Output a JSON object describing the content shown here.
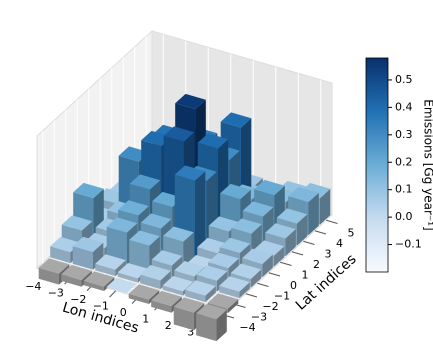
{
  "chart_data": {
    "type": "bar3d",
    "xlabel": "Lon indices",
    "ylabel": "Lat indices",
    "x": [
      -4,
      -3,
      -2,
      -1,
      0,
      1,
      2,
      3
    ],
    "y": [
      -4,
      -3,
      -2,
      -1,
      0,
      1,
      2,
      3,
      4,
      5
    ],
    "xticks": [
      {
        "value": -4,
        "label": "−4"
      },
      {
        "value": -3,
        "label": "−3"
      },
      {
        "value": -2,
        "label": "−2"
      },
      {
        "value": -1,
        "label": "−1"
      },
      0,
      1,
      2,
      3
    ],
    "yticks": [
      {
        "value": -4,
        "label": "−4"
      },
      {
        "value": -3,
        "label": "−3"
      },
      {
        "value": -2,
        "label": "−2"
      },
      {
        "value": -1,
        "label": "−1"
      },
      0,
      1,
      2,
      3,
      4,
      5
    ],
    "zlim": [
      0,
      0.6
    ],
    "values": [
      [
        -0.05,
        -0.03,
        -0.02,
        0.0,
        -0.02,
        -0.03,
        -0.08,
        -0.1
      ],
      [
        0.05,
        0.08,
        0.03,
        0.02,
        0.04,
        0.02,
        0.03,
        -0.02
      ],
      [
        0.1,
        0.05,
        0.15,
        0.12,
        0.06,
        0.04,
        0.05,
        0.03
      ],
      [
        0.2,
        0.07,
        0.18,
        0.15,
        0.12,
        0.02,
        0.06,
        0.04
      ],
      [
        0.05,
        0.1,
        0.25,
        0.2,
        0.35,
        0.05,
        0.08,
        0.06
      ],
      [
        0.08,
        0.3,
        0.4,
        0.45,
        0.3,
        0.1,
        0.12,
        0.05
      ],
      [
        0.06,
        0.1,
        0.38,
        0.55,
        0.4,
        0.2,
        0.15,
        0.08
      ],
      [
        0.04,
        0.08,
        0.3,
        0.35,
        0.3,
        0.15,
        0.2,
        0.1
      ],
      [
        0.03,
        0.06,
        0.1,
        0.12,
        0.4,
        0.1,
        0.12,
        0.15
      ],
      [
        0.02,
        0.04,
        0.05,
        0.06,
        0.08,
        0.06,
        0.1,
        0.12
      ]
    ],
    "colorbar": {
      "label": "Emissions [Gg year⁻¹]",
      "clim": [
        -0.2,
        0.58
      ],
      "colors": [
        "#f7fbff",
        "#c6dbef",
        "#6baed6",
        "#2171b5",
        "#08306b"
      ],
      "ticks": [
        {
          "value": -0.1,
          "label": "−0.1"
        },
        {
          "value": 0,
          "label": "0.0"
        },
        0.1,
        0.2,
        0.3,
        0.4,
        0.5
      ]
    }
  }
}
